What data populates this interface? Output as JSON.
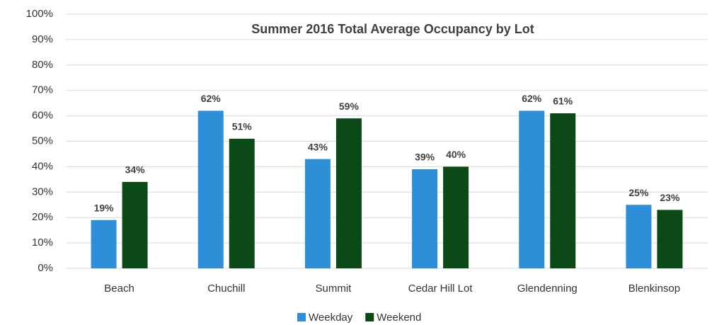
{
  "chart_data": {
    "type": "bar",
    "title": "Summer 2016 Total Average Occupancy by Lot",
    "categories": [
      "Beach",
      "Chuchill",
      "Summit",
      "Cedar Hill Lot",
      "Glendenning",
      "Blenkinsop"
    ],
    "series": [
      {
        "name": "Weekday",
        "color": "#2e8fd8",
        "values": [
          19,
          62,
          43,
          39,
          62,
          25
        ],
        "value_labels": [
          "19%",
          "62%",
          "43%",
          "39%",
          "62%",
          "25%"
        ]
      },
      {
        "name": "Weekend",
        "color": "#0b4a17",
        "values": [
          34,
          51,
          59,
          40,
          61,
          23
        ],
        "value_labels": [
          "34%",
          "51%",
          "59%",
          "40%",
          "61%",
          "23%"
        ]
      }
    ],
    "ylim": [
      0,
      100
    ],
    "yticks": [
      {
        "value": 0,
        "label": "0%"
      },
      {
        "value": 10,
        "label": "10%"
      },
      {
        "value": 20,
        "label": "20%"
      },
      {
        "value": 30,
        "label": "30%"
      },
      {
        "value": 40,
        "label": "40%"
      },
      {
        "value": 50,
        "label": "50%"
      },
      {
        "value": 60,
        "label": "60%"
      },
      {
        "value": 70,
        "label": "70%"
      },
      {
        "value": 80,
        "label": "80%"
      },
      {
        "value": 90,
        "label": "90%"
      },
      {
        "value": 100,
        "label": "100%"
      }
    ],
    "grid": true,
    "legend": "bottom"
  }
}
